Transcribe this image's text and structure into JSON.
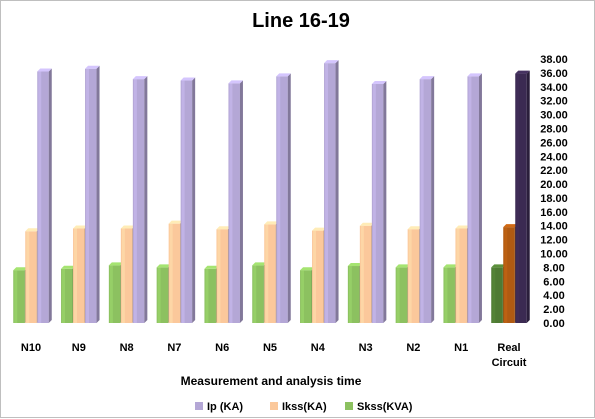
{
  "chart_data": {
    "type": "bar",
    "title": "Line 16-19",
    "xlabel": "Measurement and analysis time",
    "ylabel": "",
    "categories": [
      "N10",
      "N9",
      "N8",
      "N7",
      "N6",
      "N5",
      "N4",
      "N3",
      "N2",
      "N1",
      "Real Circuit"
    ],
    "category_lines": [
      [
        "N10"
      ],
      [
        "N9"
      ],
      [
        "N8"
      ],
      [
        "N7"
      ],
      [
        "N6"
      ],
      [
        "N5"
      ],
      [
        "N4"
      ],
      [
        "N3"
      ],
      [
        "N2"
      ],
      [
        "N1"
      ],
      [
        "Real",
        "Circuit"
      ]
    ],
    "series": [
      {
        "name": "Skss(KVA)",
        "values": [
          7.6,
          7.8,
          8.3,
          8.0,
          7.8,
          8.3,
          7.6,
          8.2,
          8.0,
          8.0,
          8.0
        ]
      },
      {
        "name": "Ikss(KA)",
        "values": [
          13.2,
          13.6,
          13.6,
          14.3,
          13.5,
          14.2,
          13.3,
          14.0,
          13.5,
          13.6,
          13.8
        ]
      },
      {
        "name": "Ip (KA)",
        "values": [
          36.2,
          36.6,
          35.1,
          34.9,
          34.5,
          35.5,
          37.4,
          34.4,
          35.1,
          35.5,
          35.9
        ]
      }
    ],
    "legend_order": [
      "Ip (KA)",
      "Ikss(KA)",
      "Skss(KVA)"
    ],
    "colors": {
      "Ip (KA)": "#b4a7d6",
      "Ikss(KA)": "#fbc89b",
      "Skss(KVA)": "#8cc160"
    },
    "highlight_colors": {
      "Ip (KA)": "#3b2a52",
      "Ikss(KA)": "#b05a12",
      "Skss(KVA)": "#4e7a33"
    },
    "ylim": [
      0,
      38
    ],
    "y_tick_step": 2,
    "y_ticks": [
      "0.00",
      "2.00",
      "4.00",
      "6.00",
      "8.00",
      "10.00",
      "12.00",
      "14.00",
      "16.00",
      "18.00",
      "20.00",
      "22.00",
      "24.00",
      "26.00",
      "28.00",
      "30.00",
      "32.00",
      "34.00",
      "36.00",
      "38.00"
    ],
    "y_axis_position": "right",
    "grid": false,
    "legend_position": "bottom"
  }
}
